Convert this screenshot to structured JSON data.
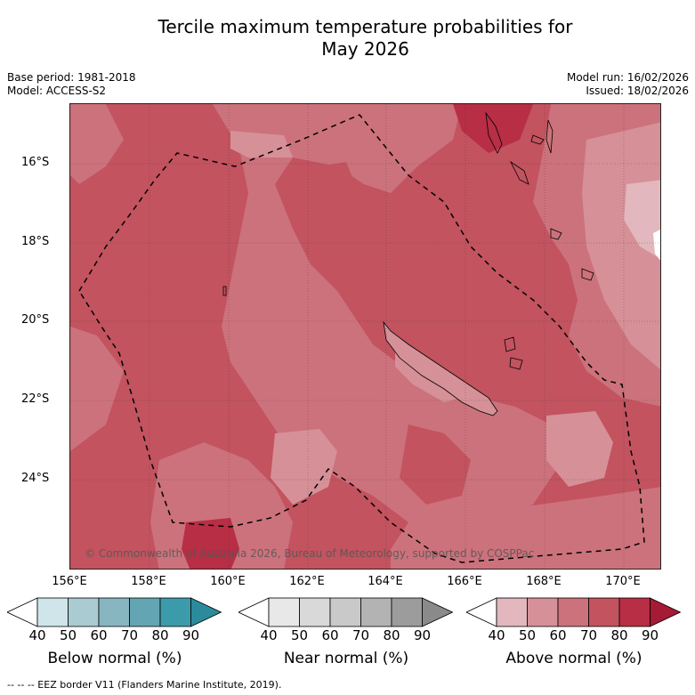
{
  "title": {
    "line1": "Tercile maximum temperature probabilities for",
    "line2": "May 2026"
  },
  "meta_left": {
    "base_period": "Base period: 1981-2018",
    "model": "Model: ACCESS-S2"
  },
  "meta_right": {
    "model_run": "Model run: 16/02/2026",
    "issued": "Issued: 18/02/2026"
  },
  "map": {
    "lat_ticks": [
      "16°S",
      "18°S",
      "20°S",
      "22°S",
      "24°S"
    ],
    "lon_ticks": [
      "156°E",
      "158°E",
      "160°E",
      "162°E",
      "164°E",
      "166°E",
      "168°E",
      "170°E"
    ],
    "copyright": "© Commonwealth of Australia 2026, Bureau of Meteorology, supported by COSPPac"
  },
  "colorbars": [
    {
      "label": "Below normal (%)",
      "ticks": [
        "40",
        "50",
        "60",
        "70",
        "80",
        "90"
      ],
      "colors": [
        "#cfe5ea",
        "#a9cbd1",
        "#87b6c1",
        "#63a5b2",
        "#3c9bab",
        "#2b8b9c"
      ]
    },
    {
      "label": "Near normal (%)",
      "ticks": [
        "40",
        "50",
        "60",
        "70",
        "80",
        "90"
      ],
      "colors": [
        "#e8e8e8",
        "#d9d9d9",
        "#c9c9c9",
        "#b3b3b3",
        "#9c9c9c",
        "#8a8a8a"
      ]
    },
    {
      "label": "Above normal (%)",
      "ticks": [
        "40",
        "50",
        "60",
        "70",
        "80",
        "90"
      ],
      "colors": [
        "#e2b7bd",
        "#d69098",
        "#cc727c",
        "#c2535f",
        "#b72e45",
        "#a51a35"
      ]
    }
  ],
  "footer": "--  --  -- EEZ border V11 (Flanders Marine Institute, 2019)."
}
